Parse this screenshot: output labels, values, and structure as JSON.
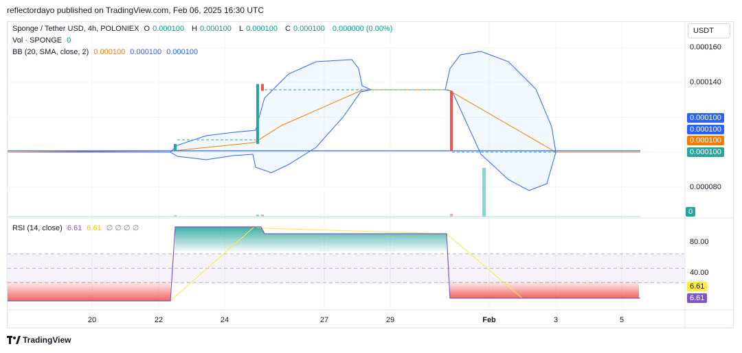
{
  "attribution": "reflectordayo published on TradingView.com, Feb 06, 2025 16:30 UTC",
  "legend": {
    "symbol": "Sponge / Tether USD, 4h, POLONIEX",
    "o_label": "O",
    "o_value": "0.000100",
    "h_label": "H",
    "h_value": "0.000100",
    "l_label": "L",
    "l_value": "0.000100",
    "c_label": "C",
    "c_value": "0.000100",
    "change": "0.000000 (0.00%)",
    "vol_label": "Vol · SPONGE",
    "vol_value": "0",
    "bb_label": "BB (20, SMA, close, 2)",
    "bb_basis": "0.000100",
    "bb_upper": "0.000100",
    "bb_lower": "0.000100",
    "rsi_label": "RSI (14, close)",
    "rsi_value": "6.61",
    "rsi_ma": "6.61",
    "rsi_extra": "∅ ∅ ∅ ∅"
  },
  "currency": "USDT",
  "price_tags": [
    "0.000100",
    "0.000100",
    "0.000100",
    "0.000100"
  ],
  "volume_tag": "0",
  "rsi_tags": [
    "6.61",
    "6.61"
  ],
  "footer": "TradingView",
  "colors": {
    "up": "#26a69a",
    "down": "#ef5350",
    "bb_basis": "#f57c00",
    "bb_band": "#2962ff",
    "rsi_line": "#7e57c2",
    "rsi_ma": "#ffeb3b",
    "grid": "#f0f3fa"
  },
  "chart_data": {
    "type": "candlestick",
    "x_ticks": [
      "20",
      "22",
      "24",
      "27",
      "29",
      "Feb",
      "3",
      "5"
    ],
    "y_ticks": [
      "0.000160",
      "0.000140",
      "0.000080"
    ],
    "ylim": [
      6.4e-05,
      0.000166
    ],
    "candles": [
      {
        "date": "Jan 22",
        "open": 0.0001,
        "close": 0.000104,
        "high": 0.000104,
        "low": 0.0001
      },
      {
        "date": "Jan 25",
        "open": 0.000104,
        "close": 0.000139,
        "high": 0.000139,
        "low": 0.000104
      },
      {
        "date": "Jan 25",
        "open": 0.000139,
        "close": 0.000135,
        "high": 0.000139,
        "low": 0.000135
      },
      {
        "date": "Jan 31",
        "open": 0.000135,
        "close": 0.0001,
        "high": 0.000135,
        "low": 0.0001
      }
    ],
    "rsi": {
      "ylim": [
        0,
        110
      ],
      "y_ticks": [
        "80.00",
        "40.00"
      ],
      "levels": [
        70,
        50,
        30
      ],
      "last_value": 6.61
    }
  }
}
